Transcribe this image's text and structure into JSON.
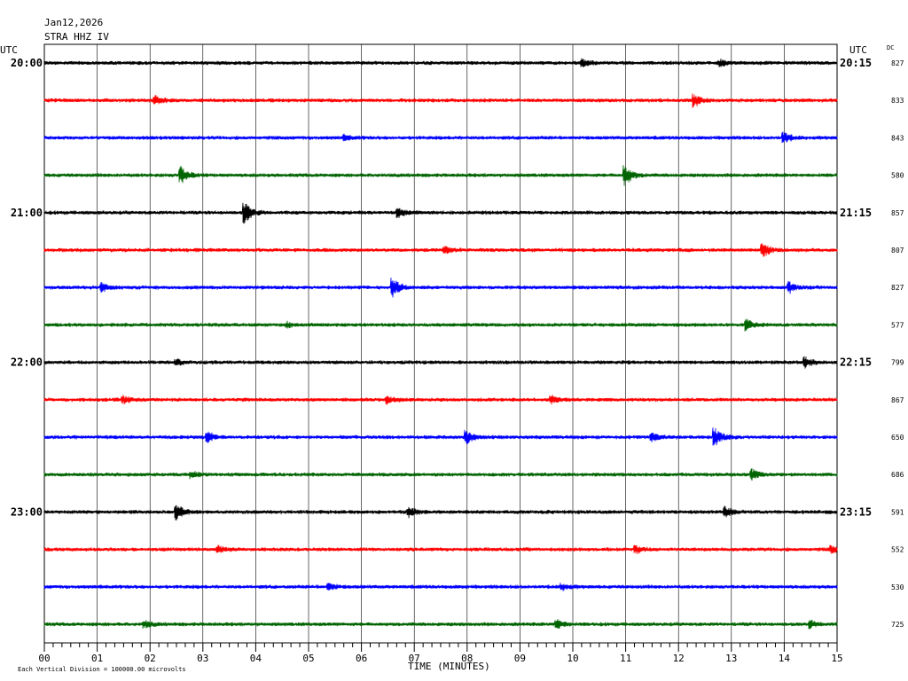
{
  "header": {
    "date": "Jan12,2026",
    "station": "STRA HHZ IV",
    "utc_left": "UTC",
    "utc_right": "UTC",
    "dc": "DC"
  },
  "footer": {
    "scale_note": "Each Vertical Division = 100000.00 microvolts"
  },
  "chart_data": {
    "type": "line",
    "xlabel": "TIME (MINUTES)",
    "x_ticks": [
      "00",
      "01",
      "02",
      "03",
      "04",
      "05",
      "06",
      "07",
      "08",
      "09",
      "10",
      "11",
      "12",
      "13",
      "14",
      "15"
    ],
    "xlim": [
      0,
      15
    ],
    "trace_colors": [
      "#000000",
      "#ff0000",
      "#0000ff",
      "#006400"
    ],
    "left_hour_labels": [
      "20:00",
      "",
      "",
      "",
      "21:00",
      "",
      "",
      "",
      "22:00",
      "",
      "",
      "",
      "23:00",
      "",
      "",
      ""
    ],
    "right_hour_labels": [
      "20:15",
      "",
      "",
      "",
      "21:15",
      "",
      "",
      "",
      "22:15",
      "",
      "",
      "",
      "23:15",
      "",
      "",
      ""
    ],
    "dc_values": [
      "827",
      "833",
      "843",
      "580",
      "857",
      "807",
      "827",
      "577",
      "799",
      "867",
      "650",
      "686",
      "591",
      "552",
      "530",
      "725"
    ],
    "events": [
      [
        [
          10.2,
          0.6
        ],
        [
          12.8,
          0.5
        ]
      ],
      [
        [
          2.1,
          0.9
        ],
        [
          12.3,
          1.1
        ]
      ],
      [
        [
          5.7,
          0.4
        ],
        [
          14.0,
          0.9
        ]
      ],
      [
        [
          2.6,
          1.4
        ],
        [
          11.0,
          1.8
        ]
      ],
      [
        [
          3.8,
          2.0
        ],
        [
          6.7,
          0.9
        ]
      ],
      [
        [
          7.6,
          0.5
        ],
        [
          13.6,
          1.3
        ]
      ],
      [
        [
          1.1,
          0.7
        ],
        [
          6.6,
          1.8
        ],
        [
          14.1,
          0.9
        ]
      ],
      [
        [
          4.6,
          0.4
        ],
        [
          13.3,
          0.9
        ]
      ],
      [
        [
          2.5,
          0.5
        ],
        [
          14.4,
          0.9
        ]
      ],
      [
        [
          1.5,
          0.6
        ],
        [
          6.5,
          0.7
        ],
        [
          9.6,
          0.6
        ]
      ],
      [
        [
          3.1,
          0.9
        ],
        [
          8.0,
          1.1
        ],
        [
          11.5,
          0.7
        ],
        [
          12.7,
          1.6
        ]
      ],
      [
        [
          2.8,
          0.6
        ],
        [
          13.4,
          0.9
        ]
      ],
      [
        [
          2.5,
          1.4
        ],
        [
          6.9,
          0.8
        ],
        [
          12.9,
          0.9
        ]
      ],
      [
        [
          3.3,
          0.6
        ],
        [
          11.2,
          0.6
        ],
        [
          14.9,
          0.6
        ]
      ],
      [
        [
          5.4,
          0.6
        ],
        [
          9.8,
          0.5
        ]
      ],
      [
        [
          1.9,
          0.6
        ],
        [
          9.7,
          0.9
        ],
        [
          14.5,
          0.6
        ]
      ]
    ]
  }
}
